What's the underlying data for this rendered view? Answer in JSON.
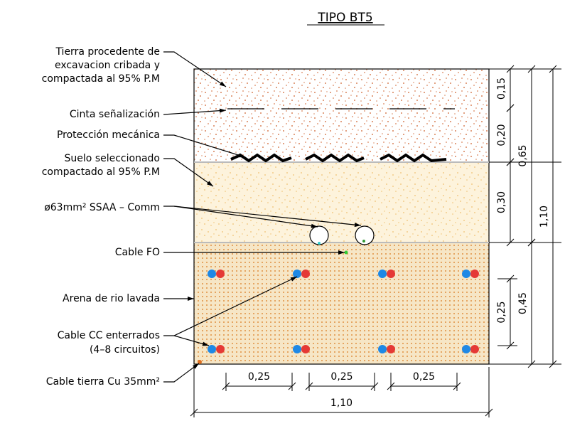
{
  "title": "TIPO BT5",
  "labels": [
    {
      "lines": [
        "Tierra procedente de",
        "excavacion cribada y",
        "compactada al 95% P.M"
      ]
    },
    {
      "lines": [
        "Cinta señalización"
      ]
    },
    {
      "lines": [
        "Protección mecánica"
      ]
    },
    {
      "lines": [
        "Suelo seleccionado",
        "compactado al 95% P.M"
      ]
    },
    {
      "lines": [
        "ø63mm² SSAA – Comm"
      ]
    },
    {
      "lines": [
        "Cable FO"
      ]
    },
    {
      "lines": [
        "Arena de rio lavada"
      ]
    },
    {
      "lines": [
        "Cable CC enterrados",
        "(4–8 circuitos)"
      ]
    },
    {
      "lines": [
        "Cable tierra Cu 35mm²"
      ]
    }
  ],
  "dimensions": {
    "vertical": [
      "0,15",
      "0,20",
      "0,30",
      "0,65",
      "1,10",
      "0,25",
      "0,45"
    ],
    "horizontal": [
      "0,25",
      "0,25",
      "0,25",
      "1,10"
    ]
  }
}
